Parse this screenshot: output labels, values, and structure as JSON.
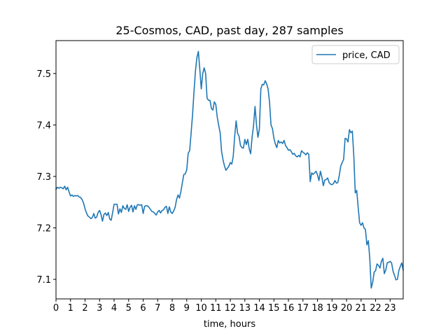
{
  "chart_data": {
    "type": "line",
    "title": "25-Cosmos, CAD, past day, 287 samples",
    "xlabel": "time, hours",
    "ylabel": "",
    "xlim": [
      0,
      23.9
    ],
    "ylim": [
      7.062,
      7.564
    ],
    "xticks": [
      0,
      1,
      2,
      3,
      4,
      5,
      6,
      7,
      8,
      9,
      10,
      11,
      12,
      13,
      14,
      15,
      16,
      17,
      18,
      19,
      20,
      21,
      22,
      23
    ],
    "xtick_labels": [
      "0",
      "1",
      "2",
      "3",
      "4",
      "5",
      "6",
      "7",
      "8",
      "9",
      "10",
      "11",
      "12",
      "13",
      "14",
      "15",
      "16",
      "17",
      "18",
      "19",
      "20",
      "21",
      "22",
      "23"
    ],
    "yticks": [
      7.1,
      7.2,
      7.3,
      7.4,
      7.5
    ],
    "ytick_labels": [
      "7.1",
      "7.2",
      "7.3",
      "7.4",
      "7.5"
    ],
    "grid": false,
    "legend_position": "top-right",
    "series": [
      {
        "name": "price, CAD",
        "color": "#1f77b4",
        "points": [
          [
            0.0,
            7.275
          ],
          [
            0.1,
            7.279
          ],
          [
            0.2,
            7.277
          ],
          [
            0.3,
            7.279
          ],
          [
            0.4,
            7.278
          ],
          [
            0.5,
            7.276
          ],
          [
            0.6,
            7.281
          ],
          [
            0.7,
            7.274
          ],
          [
            0.8,
            7.279
          ],
          [
            0.9,
            7.27
          ],
          [
            1.0,
            7.262
          ],
          [
            1.1,
            7.264
          ],
          [
            1.2,
            7.261
          ],
          [
            1.3,
            7.263
          ],
          [
            1.4,
            7.262
          ],
          [
            1.5,
            7.263
          ],
          [
            1.6,
            7.26
          ],
          [
            1.7,
            7.259
          ],
          [
            1.8,
            7.255
          ],
          [
            1.9,
            7.248
          ],
          [
            2.0,
            7.237
          ],
          [
            2.1,
            7.229
          ],
          [
            2.2,
            7.223
          ],
          [
            2.3,
            7.221
          ],
          [
            2.4,
            7.218
          ],
          [
            2.5,
            7.22
          ],
          [
            2.6,
            7.228
          ],
          [
            2.7,
            7.219
          ],
          [
            2.8,
            7.221
          ],
          [
            2.9,
            7.23
          ],
          [
            3.0,
            7.234
          ],
          [
            3.1,
            7.226
          ],
          [
            3.2,
            7.213
          ],
          [
            3.3,
            7.226
          ],
          [
            3.4,
            7.229
          ],
          [
            3.5,
            7.224
          ],
          [
            3.6,
            7.23
          ],
          [
            3.7,
            7.217
          ],
          [
            3.8,
            7.215
          ],
          [
            3.9,
            7.23
          ],
          [
            4.0,
            7.246
          ],
          [
            4.1,
            7.246
          ],
          [
            4.2,
            7.246
          ],
          [
            4.3,
            7.227
          ],
          [
            4.4,
            7.237
          ],
          [
            4.5,
            7.23
          ],
          [
            4.6,
            7.243
          ],
          [
            4.7,
            7.238
          ],
          [
            4.8,
            7.236
          ],
          [
            4.9,
            7.245
          ],
          [
            5.0,
            7.232
          ],
          [
            5.1,
            7.24
          ],
          [
            5.2,
            7.244
          ],
          [
            5.3,
            7.231
          ],
          [
            5.4,
            7.243
          ],
          [
            5.5,
            7.236
          ],
          [
            5.6,
            7.245
          ],
          [
            5.7,
            7.245
          ],
          [
            5.8,
            7.244
          ],
          [
            5.9,
            7.245
          ],
          [
            6.0,
            7.228
          ],
          [
            6.1,
            7.242
          ],
          [
            6.2,
            7.243
          ],
          [
            6.3,
            7.243
          ],
          [
            6.4,
            7.24
          ],
          [
            6.5,
            7.236
          ],
          [
            6.6,
            7.232
          ],
          [
            6.7,
            7.231
          ],
          [
            6.8,
            7.228
          ],
          [
            6.9,
            7.225
          ],
          [
            7.0,
            7.231
          ],
          [
            7.1,
            7.234
          ],
          [
            7.2,
            7.229
          ],
          [
            7.3,
            7.234
          ],
          [
            7.4,
            7.235
          ],
          [
            7.5,
            7.24
          ],
          [
            7.6,
            7.242
          ],
          [
            7.7,
            7.228
          ],
          [
            7.8,
            7.241
          ],
          [
            7.9,
            7.231
          ],
          [
            8.0,
            7.228
          ],
          [
            8.1,
            7.233
          ],
          [
            8.2,
            7.24
          ],
          [
            8.3,
            7.255
          ],
          [
            8.4,
            7.264
          ],
          [
            8.5,
            7.258
          ],
          [
            8.6,
            7.271
          ],
          [
            8.7,
            7.288
          ],
          [
            8.8,
            7.304
          ],
          [
            8.9,
            7.305
          ],
          [
            9.0,
            7.313
          ],
          [
            9.1,
            7.345
          ],
          [
            9.2,
            7.35
          ],
          [
            9.3,
            7.384
          ],
          [
            9.4,
            7.42
          ],
          [
            9.5,
            7.465
          ],
          [
            9.6,
            7.505
          ],
          [
            9.7,
            7.531
          ],
          [
            9.8,
            7.543
          ],
          [
            9.9,
            7.508
          ],
          [
            10.0,
            7.47
          ],
          [
            10.1,
            7.5
          ],
          [
            10.2,
            7.511
          ],
          [
            10.3,
            7.5
          ],
          [
            10.4,
            7.452
          ],
          [
            10.5,
            7.448
          ],
          [
            10.6,
            7.448
          ],
          [
            10.7,
            7.432
          ],
          [
            10.8,
            7.429
          ],
          [
            10.9,
            7.445
          ],
          [
            11.0,
            7.44
          ],
          [
            11.1,
            7.415
          ],
          [
            11.2,
            7.399
          ],
          [
            11.3,
            7.385
          ],
          [
            11.4,
            7.348
          ],
          [
            11.5,
            7.332
          ],
          [
            11.6,
            7.32
          ],
          [
            11.7,
            7.312
          ],
          [
            11.8,
            7.316
          ],
          [
            11.9,
            7.32
          ],
          [
            12.0,
            7.327
          ],
          [
            12.1,
            7.324
          ],
          [
            12.2,
            7.339
          ],
          [
            12.3,
            7.378
          ],
          [
            12.4,
            7.408
          ],
          [
            12.5,
            7.384
          ],
          [
            12.6,
            7.378
          ],
          [
            12.7,
            7.36
          ],
          [
            12.8,
            7.356
          ],
          [
            12.9,
            7.355
          ],
          [
            13.0,
            7.372
          ],
          [
            13.1,
            7.362
          ],
          [
            13.2,
            7.372
          ],
          [
            13.3,
            7.354
          ],
          [
            13.4,
            7.344
          ],
          [
            13.5,
            7.377
          ],
          [
            13.6,
            7.399
          ],
          [
            13.7,
            7.436
          ],
          [
            13.8,
            7.401
          ],
          [
            13.9,
            7.376
          ],
          [
            14.0,
            7.392
          ],
          [
            14.1,
            7.47
          ],
          [
            14.2,
            7.479
          ],
          [
            14.3,
            7.478
          ],
          [
            14.4,
            7.486
          ],
          [
            14.5,
            7.48
          ],
          [
            14.6,
            7.47
          ],
          [
            14.7,
            7.444
          ],
          [
            14.8,
            7.4
          ],
          [
            14.9,
            7.393
          ],
          [
            15.0,
            7.374
          ],
          [
            15.1,
            7.363
          ],
          [
            15.2,
            7.356
          ],
          [
            15.3,
            7.37
          ],
          [
            15.4,
            7.365
          ],
          [
            15.5,
            7.367
          ],
          [
            15.6,
            7.364
          ],
          [
            15.7,
            7.37
          ],
          [
            15.8,
            7.36
          ],
          [
            15.9,
            7.356
          ],
          [
            16.0,
            7.351
          ],
          [
            16.1,
            7.352
          ],
          [
            16.2,
            7.348
          ],
          [
            16.3,
            7.343
          ],
          [
            16.4,
            7.345
          ],
          [
            16.5,
            7.34
          ],
          [
            16.6,
            7.338
          ],
          [
            16.7,
            7.341
          ],
          [
            16.8,
            7.338
          ],
          [
            16.9,
            7.35
          ],
          [
            17.0,
            7.347
          ],
          [
            17.1,
            7.345
          ],
          [
            17.2,
            7.342
          ],
          [
            17.3,
            7.346
          ],
          [
            17.4,
            7.343
          ],
          [
            17.5,
            7.29
          ],
          [
            17.6,
            7.307
          ],
          [
            17.7,
            7.304
          ],
          [
            17.8,
            7.307
          ],
          [
            17.9,
            7.31
          ],
          [
            18.0,
            7.303
          ],
          [
            18.1,
            7.292
          ],
          [
            18.2,
            7.31
          ],
          [
            18.3,
            7.299
          ],
          [
            18.4,
            7.282
          ],
          [
            18.5,
            7.293
          ],
          [
            18.6,
            7.294
          ],
          [
            18.7,
            7.297
          ],
          [
            18.8,
            7.288
          ],
          [
            18.9,
            7.285
          ],
          [
            19.0,
            7.284
          ],
          [
            19.1,
            7.286
          ],
          [
            19.2,
            7.292
          ],
          [
            19.3,
            7.287
          ],
          [
            19.4,
            7.288
          ],
          [
            19.5,
            7.302
          ],
          [
            19.6,
            7.32
          ],
          [
            19.7,
            7.327
          ],
          [
            19.8,
            7.333
          ],
          [
            19.9,
            7.374
          ],
          [
            20.0,
            7.373
          ],
          [
            20.1,
            7.367
          ],
          [
            20.2,
            7.391
          ],
          [
            20.3,
            7.385
          ],
          [
            20.4,
            7.388
          ],
          [
            20.5,
            7.34
          ],
          [
            20.6,
            7.268
          ],
          [
            20.7,
            7.273
          ],
          [
            20.8,
            7.24
          ],
          [
            20.9,
            7.21
          ],
          [
            21.0,
            7.205
          ],
          [
            21.1,
            7.21
          ],
          [
            21.2,
            7.2
          ],
          [
            21.3,
            7.197
          ],
          [
            21.4,
            7.167
          ],
          [
            21.5,
            7.175
          ],
          [
            21.6,
            7.14
          ],
          [
            21.7,
            7.083
          ],
          [
            21.8,
            7.094
          ],
          [
            21.9,
            7.114
          ],
          [
            22.0,
            7.117
          ],
          [
            22.1,
            7.13
          ],
          [
            22.2,
            7.127
          ],
          [
            22.3,
            7.122
          ],
          [
            22.4,
            7.135
          ],
          [
            22.5,
            7.141
          ],
          [
            22.6,
            7.111
          ],
          [
            22.7,
            7.118
          ],
          [
            22.8,
            7.132
          ],
          [
            22.9,
            7.133
          ],
          [
            23.0,
            7.135
          ],
          [
            23.1,
            7.132
          ],
          [
            23.2,
            7.116
          ],
          [
            23.3,
            7.108
          ],
          [
            23.4,
            7.099
          ],
          [
            23.5,
            7.1
          ],
          [
            23.6,
            7.117
          ],
          [
            23.7,
            7.125
          ],
          [
            23.8,
            7.132
          ],
          [
            23.9,
            7.118
          ]
        ]
      }
    ]
  }
}
